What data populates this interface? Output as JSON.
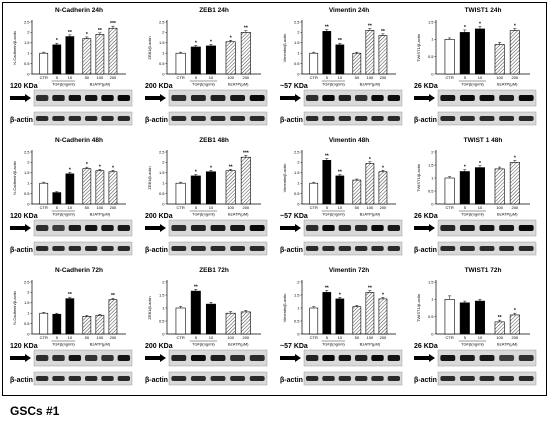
{
  "caption": "GSCs #1",
  "common": {
    "categories": [
      "CTR",
      "5",
      "10",
      "50",
      "100",
      "200"
    ],
    "group_labels": [
      "TGFβ(ng/ml)",
      "BzATP(μM)"
    ],
    "actin_label": "β-actin"
  },
  "chart_data": [
    {
      "type": "bar",
      "title": "N-Cadherin 24h",
      "ylabel": "N-Cadherin/β-actin",
      "ylim": [
        0,
        2.5
      ],
      "yticks": [
        "0",
        "0.5",
        "1",
        "1.5",
        "2",
        "2.5"
      ],
      "categories": [
        "CTR",
        "5",
        "10",
        "50",
        "100",
        "200"
      ],
      "values": [
        1.0,
        1.4,
        1.8,
        1.7,
        1.9,
        2.2
      ],
      "errors": [
        0.05,
        0.08,
        0.08,
        0.08,
        0.08,
        0.1
      ],
      "annotations": [
        "",
        "*",
        "**",
        "*",
        "**",
        "***"
      ],
      "kda": "120 KDa"
    },
    {
      "type": "bar",
      "title": "ZEB1 24h",
      "ylabel": "ZEB1/β-actin",
      "ylim": [
        0,
        2.5
      ],
      "yticks": [
        "0",
        "0.5",
        "1",
        "1.5",
        "2",
        "2.5"
      ],
      "categories": [
        "CTR",
        "5",
        "10",
        "100",
        "200"
      ],
      "values": [
        1.0,
        1.3,
        1.35,
        1.55,
        2.0
      ],
      "errors": [
        0.05,
        0.07,
        0.07,
        0.07,
        0.08
      ],
      "annotations": [
        "",
        "*",
        "*",
        "*",
        "**"
      ],
      "kda": "200 KDa"
    },
    {
      "type": "bar",
      "title": "Vimentin 24h",
      "ylabel": "Vimentin/β-actin",
      "ylim": [
        0,
        2.5
      ],
      "yticks": [
        "0",
        "0.5",
        "1",
        "1.5",
        "2",
        "2.5"
      ],
      "categories": [
        "CTR",
        "5",
        "10",
        "50",
        "100",
        "200"
      ],
      "values": [
        1.0,
        2.05,
        1.4,
        1.0,
        2.1,
        1.85
      ],
      "errors": [
        0.05,
        0.08,
        0.08,
        0.05,
        0.08,
        0.08
      ],
      "annotations": [
        "",
        "**",
        "**",
        "",
        "**",
        "**"
      ],
      "kda": "~57 KDa"
    },
    {
      "type": "bar",
      "title": "TWIST1 24h",
      "ylabel": "TWIST1/β-actin",
      "ylim": [
        0,
        1.5
      ],
      "yticks": [
        "0",
        "0.5",
        "1",
        "1.5"
      ],
      "categories": [
        "CTR",
        "5",
        "10",
        "100",
        "200"
      ],
      "values": [
        1.0,
        1.2,
        1.3,
        0.85,
        1.25
      ],
      "errors": [
        0.04,
        0.07,
        0.07,
        0.06,
        0.06
      ],
      "annotations": [
        "",
        "*",
        "*",
        "",
        "*"
      ],
      "kda": "26 KDa"
    },
    {
      "type": "bar",
      "title": "N-Cadherin 48h",
      "ylabel": "N-Cadherin/β-actin",
      "ylim": [
        0,
        2.5
      ],
      "yticks": [
        "0",
        "0.5",
        "1",
        "1.5",
        "2",
        "2.5"
      ],
      "categories": [
        "CTR",
        "5",
        "10",
        "50",
        "100",
        "200"
      ],
      "values": [
        1.0,
        0.55,
        1.45,
        1.7,
        1.6,
        1.55
      ],
      "errors": [
        0.05,
        0.04,
        0.07,
        0.07,
        0.07,
        0.07
      ],
      "annotations": [
        "",
        "",
        "*",
        "*",
        "*",
        "*"
      ],
      "kda": "120 KDa"
    },
    {
      "type": "bar",
      "title": "ZEB1 48h",
      "ylabel": "ZEB1/β-actin",
      "ylim": [
        0,
        2.5
      ],
      "yticks": [
        "0",
        "0.5",
        "1",
        "1.5",
        "2",
        "2.5"
      ],
      "categories": [
        "CTR",
        "5",
        "10",
        "100",
        "200"
      ],
      "values": [
        1.0,
        1.35,
        1.55,
        1.6,
        2.25
      ],
      "errors": [
        0.05,
        0.07,
        0.07,
        0.07,
        0.08
      ],
      "annotations": [
        "",
        "*",
        "*",
        "**",
        "***"
      ],
      "kda": "200 KDa"
    },
    {
      "type": "bar",
      "title": "Vimentin 48h",
      "ylabel": "Vimentin/β-actin",
      "ylim": [
        0,
        2.5
      ],
      "yticks": [
        "0",
        "0.5",
        "1",
        "1.5",
        "2",
        "2.5"
      ],
      "categories": [
        "CTR",
        "5",
        "10",
        "50",
        "100",
        "200"
      ],
      "values": [
        1.0,
        2.1,
        1.35,
        1.15,
        1.95,
        1.55
      ],
      "errors": [
        0.05,
        0.08,
        0.07,
        0.05,
        0.08,
        0.07
      ],
      "annotations": [
        "",
        "**",
        "**",
        "",
        "*",
        "*"
      ],
      "kda": "~57 KDa"
    },
    {
      "type": "bar",
      "title": "TWIST 1 48h",
      "ylabel": "TWIST1/β-actin",
      "ylim": [
        0,
        2.0
      ],
      "yticks": [
        "0",
        "0.5",
        "1",
        "1.5",
        "2"
      ],
      "categories": [
        "CTR",
        "5",
        "10",
        "100",
        "200"
      ],
      "values": [
        1.0,
        1.25,
        1.4,
        1.35,
        1.6
      ],
      "errors": [
        0.05,
        0.07,
        0.07,
        0.07,
        0.07
      ],
      "annotations": [
        "",
        "*",
        "*",
        "",
        "*"
      ],
      "kda": "26 KDa"
    },
    {
      "type": "bar",
      "title": "N-Cadherin 72h",
      "ylabel": "N-Cadherin/β-actin",
      "ylim": [
        0,
        2.5
      ],
      "yticks": [
        "0",
        "0.5",
        "1",
        "1.5",
        "2",
        "2.5"
      ],
      "categories": [
        "CTR",
        "5",
        "10",
        "50",
        "100",
        "200"
      ],
      "values": [
        1.0,
        0.95,
        1.7,
        0.85,
        0.9,
        1.65
      ],
      "errors": [
        0.04,
        0.05,
        0.07,
        0.04,
        0.05,
        0.07
      ],
      "annotations": [
        "",
        "",
        "**",
        "",
        "",
        "**"
      ],
      "kda": "120 KDa"
    },
    {
      "type": "bar",
      "title": "ZEB1 72h",
      "ylabel": "ZEB1/β-actin",
      "ylim": [
        0,
        2.0
      ],
      "yticks": [
        "0",
        "0.5",
        "1",
        "1.5",
        "2"
      ],
      "categories": [
        "CTR",
        "5",
        "10",
        "100",
        "200"
      ],
      "values": [
        1.0,
        1.65,
        1.15,
        0.8,
        0.85
      ],
      "errors": [
        0.06,
        0.07,
        0.07,
        0.06,
        0.06
      ],
      "annotations": [
        "",
        "**",
        "",
        "",
        ""
      ],
      "kda": "200 KDa"
    },
    {
      "type": "bar",
      "title": "Vimentin 72h",
      "ylabel": "Vimentin/β-actin",
      "ylim": [
        0,
        2.0
      ],
      "yticks": [
        "0",
        "0.5",
        "1",
        "1.5",
        "2"
      ],
      "categories": [
        "CTR",
        "5",
        "10",
        "50",
        "100",
        "200"
      ],
      "values": [
        1.0,
        1.6,
        1.35,
        1.05,
        1.6,
        1.35
      ],
      "errors": [
        0.05,
        0.07,
        0.06,
        0.05,
        0.07,
        0.06
      ],
      "annotations": [
        "",
        "**",
        "*",
        "",
        "**",
        "*"
      ],
      "kda": "~57 KDa"
    },
    {
      "type": "bar",
      "title": "TWIST1 72h",
      "ylabel": "TWIST1/β-actin",
      "ylim": [
        0,
        1.5
      ],
      "yticks": [
        "0",
        "0.5",
        "1",
        "1.5"
      ],
      "categories": [
        "CTR",
        "5",
        "10",
        "100",
        "200"
      ],
      "values": [
        1.0,
        0.9,
        0.95,
        0.35,
        0.55
      ],
      "errors": [
        0.1,
        0.05,
        0.05,
        0.05,
        0.05
      ],
      "annotations": [
        "",
        "",
        "",
        "**",
        "*"
      ],
      "kda": "26 KDa"
    }
  ]
}
